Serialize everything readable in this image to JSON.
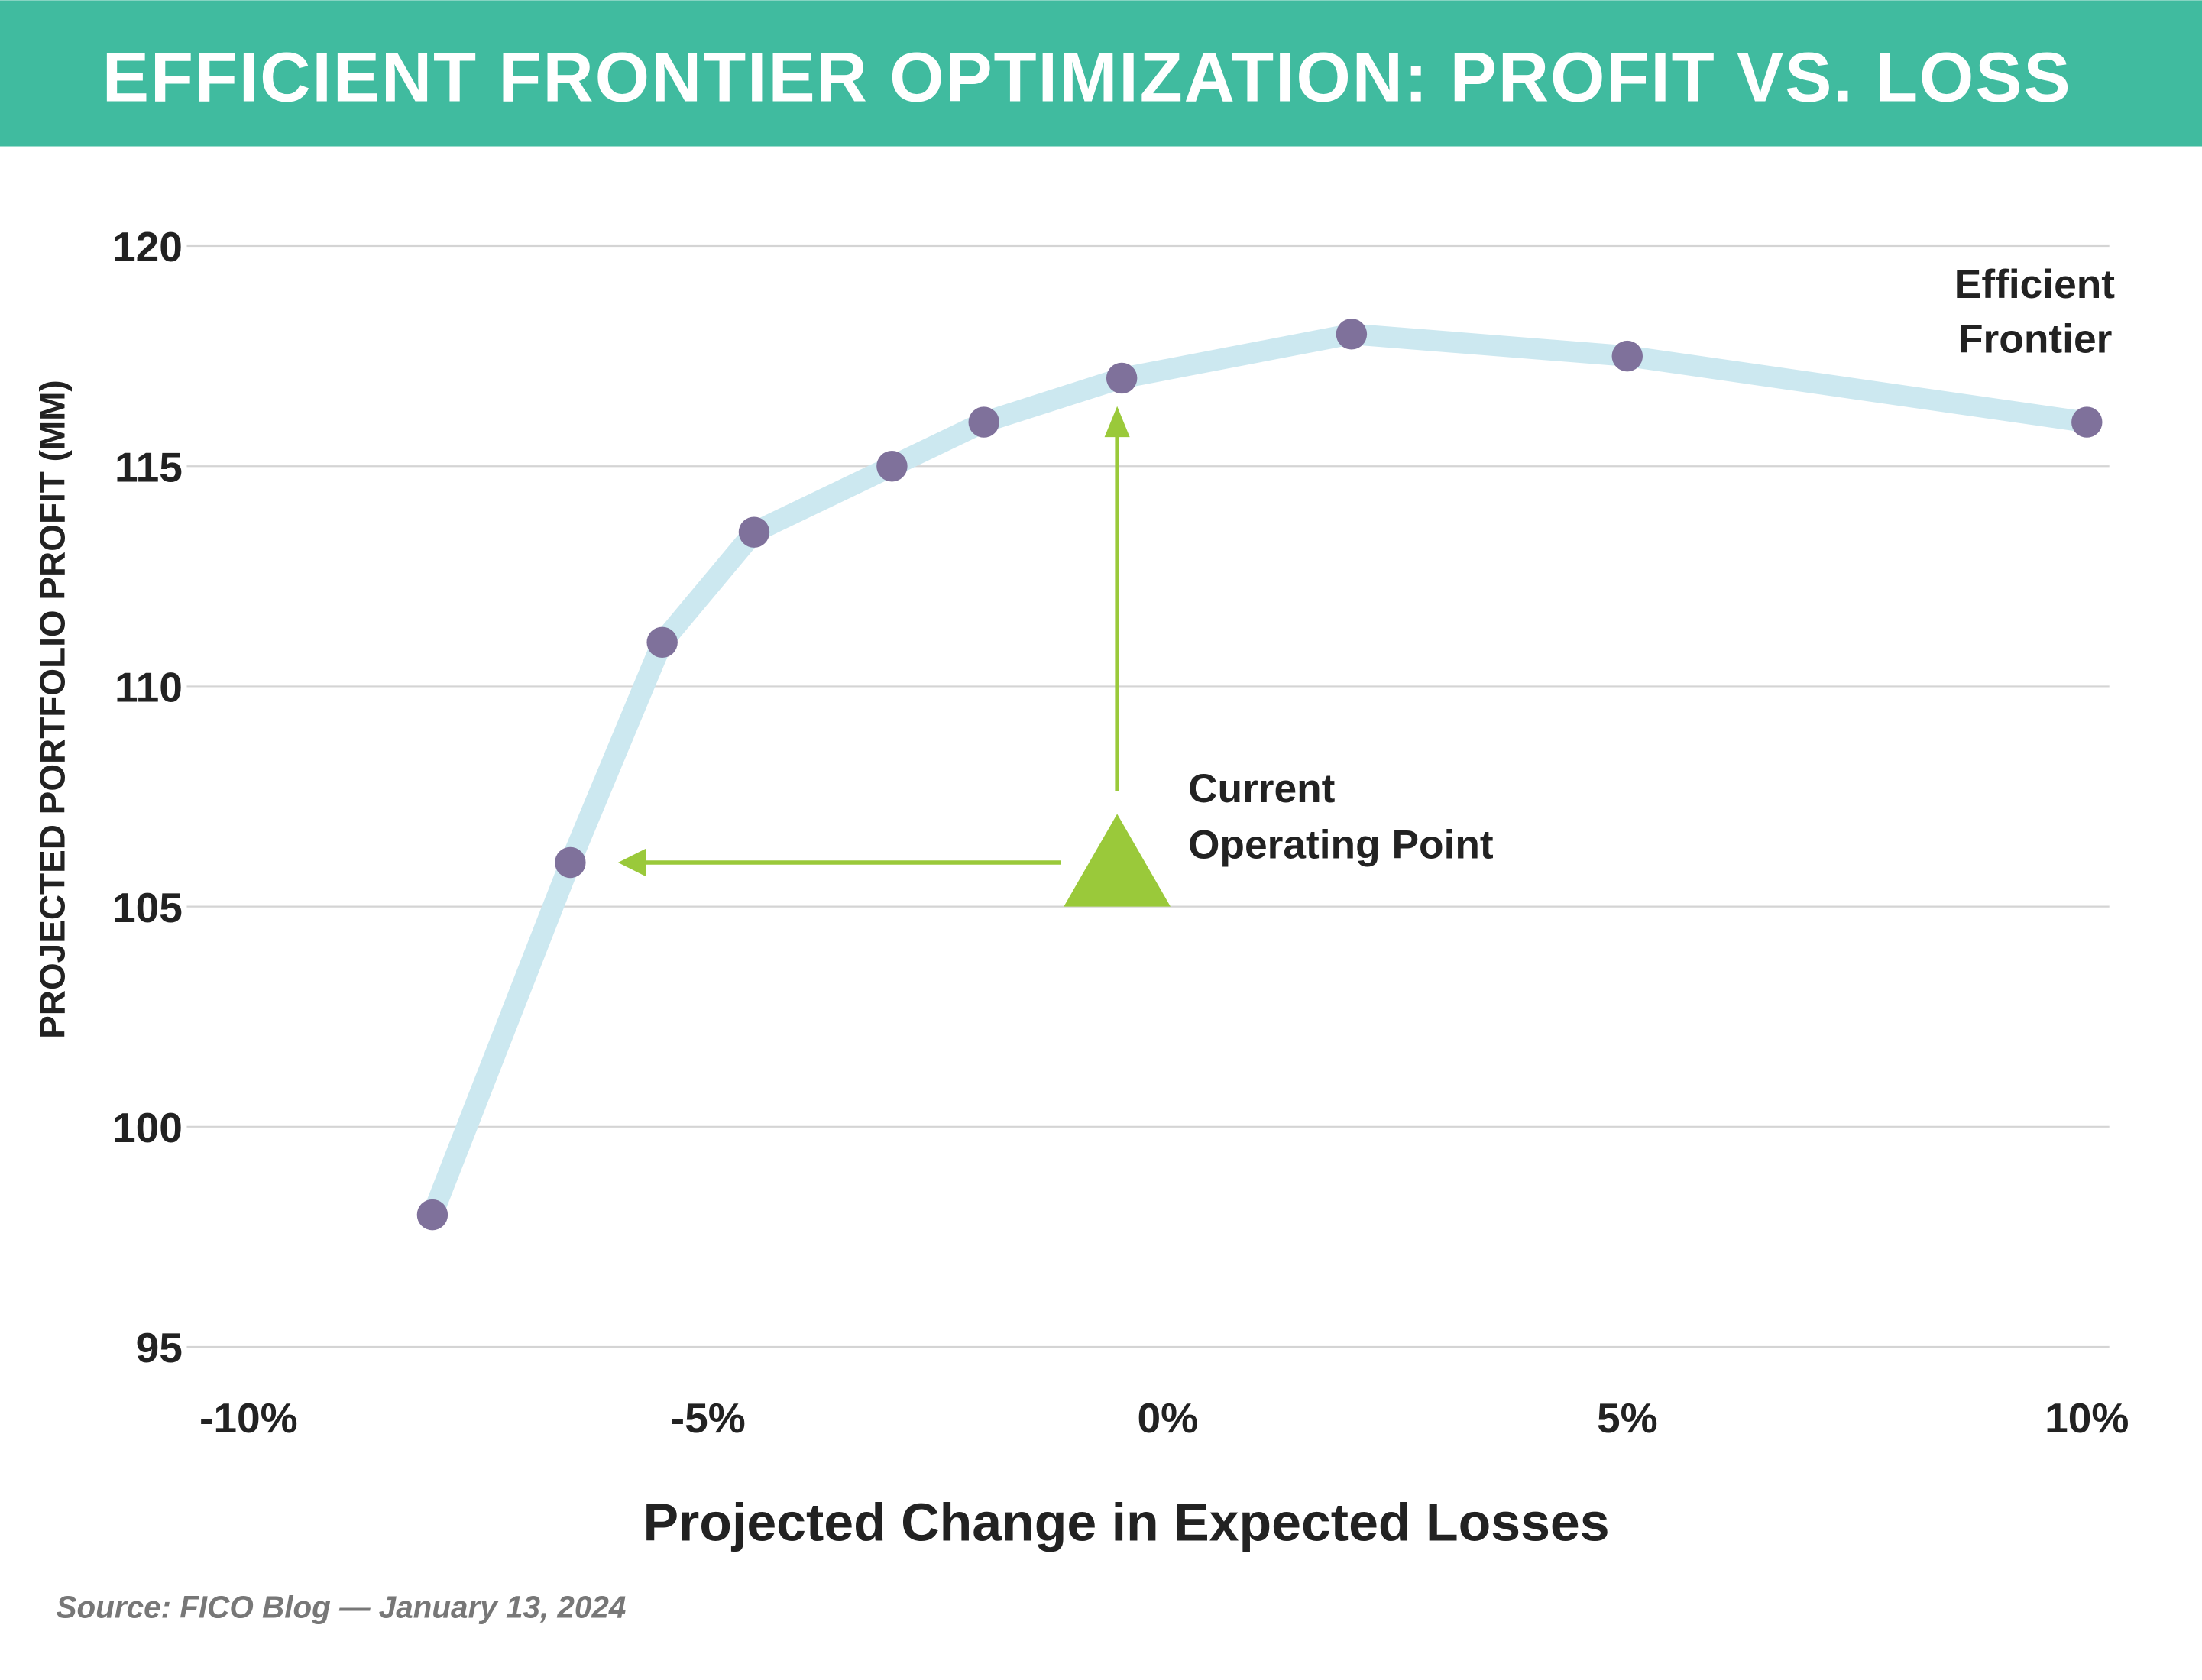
{
  "header": {
    "title": "EFFICIENT FRONTIER OPTIMIZATION: PROFIT VS. LOSS"
  },
  "colors": {
    "banner": "#40bb9f",
    "frontier_line": "#cce8f0",
    "points": "#7f719b",
    "operating_point": "#9ac93a"
  },
  "chart_data": {
    "type": "line",
    "title": "EFFICIENT FRONTIER OPTIMIZATION: PROFIT VS. LOSS",
    "xlabel": "Projected Change in Expected Losses",
    "ylabel": "PROJECTED PORTFOLIO PROFIT (MM)",
    "xlim": [
      -10,
      10
    ],
    "ylim": [
      95,
      120
    ],
    "x_ticks": [
      "-10%",
      "-5%",
      "0%",
      "5%",
      "10%"
    ],
    "x_tick_values": [
      -10,
      -5,
      0,
      5,
      10
    ],
    "y_ticks": [
      "95",
      "100",
      "105",
      "110",
      "115",
      "120"
    ],
    "y_tick_values": [
      95,
      100,
      105,
      110,
      115,
      120
    ],
    "grid": "horizontal",
    "series": [
      {
        "name": "Efficient Frontier",
        "x": [
          -8,
          -6.5,
          -5.5,
          -4.5,
          -3,
          -2,
          -0.5,
          2,
          5,
          10
        ],
        "y": [
          98,
          106,
          111,
          113.5,
          115,
          116,
          117,
          118,
          117.5,
          116
        ]
      }
    ],
    "operating_point": {
      "label_line1": "Current",
      "label_line2": "Operating Point",
      "x": -0.55,
      "y": 105
    },
    "annotations": {
      "frontier_label_line1": "Efficient",
      "frontier_label_line2": "Frontier"
    }
  },
  "footer": {
    "source": "Source: FICO Blog — January 13, 2024"
  }
}
